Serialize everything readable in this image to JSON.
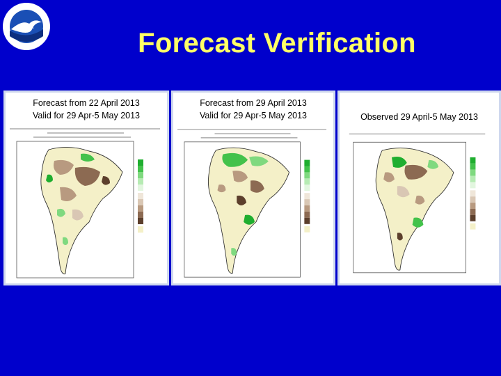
{
  "slide": {
    "title": "Forecast Verification",
    "background_color": "#0000cc",
    "title_color": "#ffff66",
    "logo_icon": "noaa-logo-icon"
  },
  "panels": [
    {
      "caption_line1": "Forecast from 22 April 2013",
      "caption_line2": "Valid for 29 Apr-5 May 2013",
      "map": "south-america-precip-forecast-week3-4"
    },
    {
      "caption_line1": "Forecast from 29 April 2013",
      "caption_line2": "Valid for 29 Apr-5 May 2013",
      "map": "south-america-precip-forecast-week1"
    },
    {
      "caption_line1": "Observed 29 April-5 May 2013",
      "caption_line2": "",
      "map": "south-america-precip-observed"
    }
  ],
  "legend_colors": {
    "wet": [
      "#1fae2f",
      "#43c24b",
      "#7fd97f",
      "#b6ebb3",
      "#e2f6df"
    ],
    "dry": [
      "#efe6d9",
      "#d9c7b4",
      "#b89a80",
      "#8c6a52",
      "#5c3f2c"
    ],
    "neutral": "#f4f0c8"
  }
}
